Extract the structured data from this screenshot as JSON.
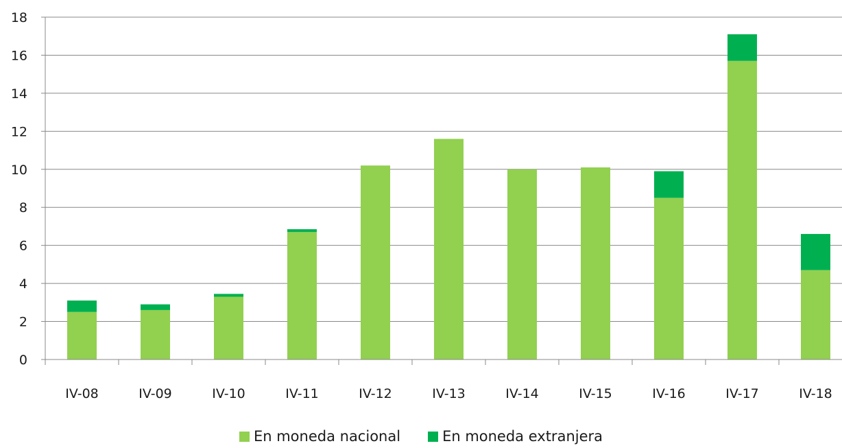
{
  "chart_data": {
    "type": "bar",
    "stacked": true,
    "title": "",
    "xlabel": "",
    "ylabel": "",
    "categories": [
      "IV-08",
      "IV-09",
      "IV-10",
      "IV-11",
      "IV-12",
      "IV-13",
      "IV-14",
      "IV-15",
      "IV-16",
      "IV-17",
      "IV-18"
    ],
    "series": [
      {
        "name": "En moneda nacional",
        "color": "#92d050",
        "values": [
          2.5,
          2.6,
          3.3,
          6.7,
          10.2,
          11.6,
          10.0,
          10.1,
          8.5,
          15.7,
          4.7
        ]
      },
      {
        "name": "En moneda extranjera",
        "color": "#00b050",
        "values": [
          0.6,
          0.3,
          0.15,
          0.15,
          0.0,
          0.0,
          0.0,
          0.0,
          1.4,
          1.4,
          1.9
        ]
      }
    ],
    "ylim": [
      0,
      18
    ],
    "yticks": [
      0,
      2,
      4,
      6,
      8,
      10,
      12,
      14,
      16,
      18
    ],
    "grid": true,
    "legend_position": "bottom"
  }
}
